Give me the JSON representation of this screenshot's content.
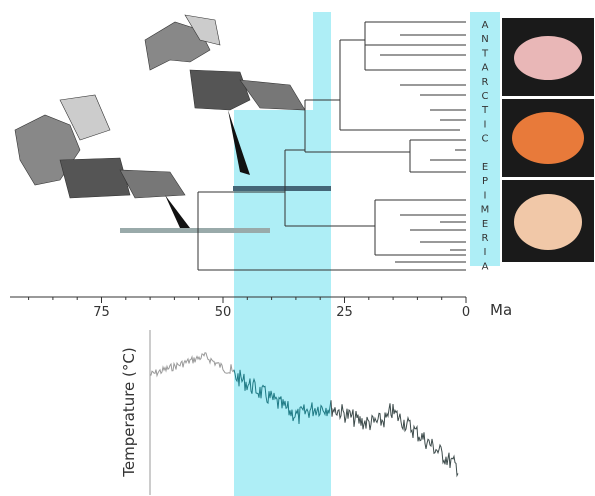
{
  "axis": {
    "label": "Ma",
    "ticks": [
      75,
      50,
      25,
      0
    ]
  },
  "clade_label": "ANTARCTIC EPIMERIA",
  "temperature_label": "Temperature (°C)"
}
